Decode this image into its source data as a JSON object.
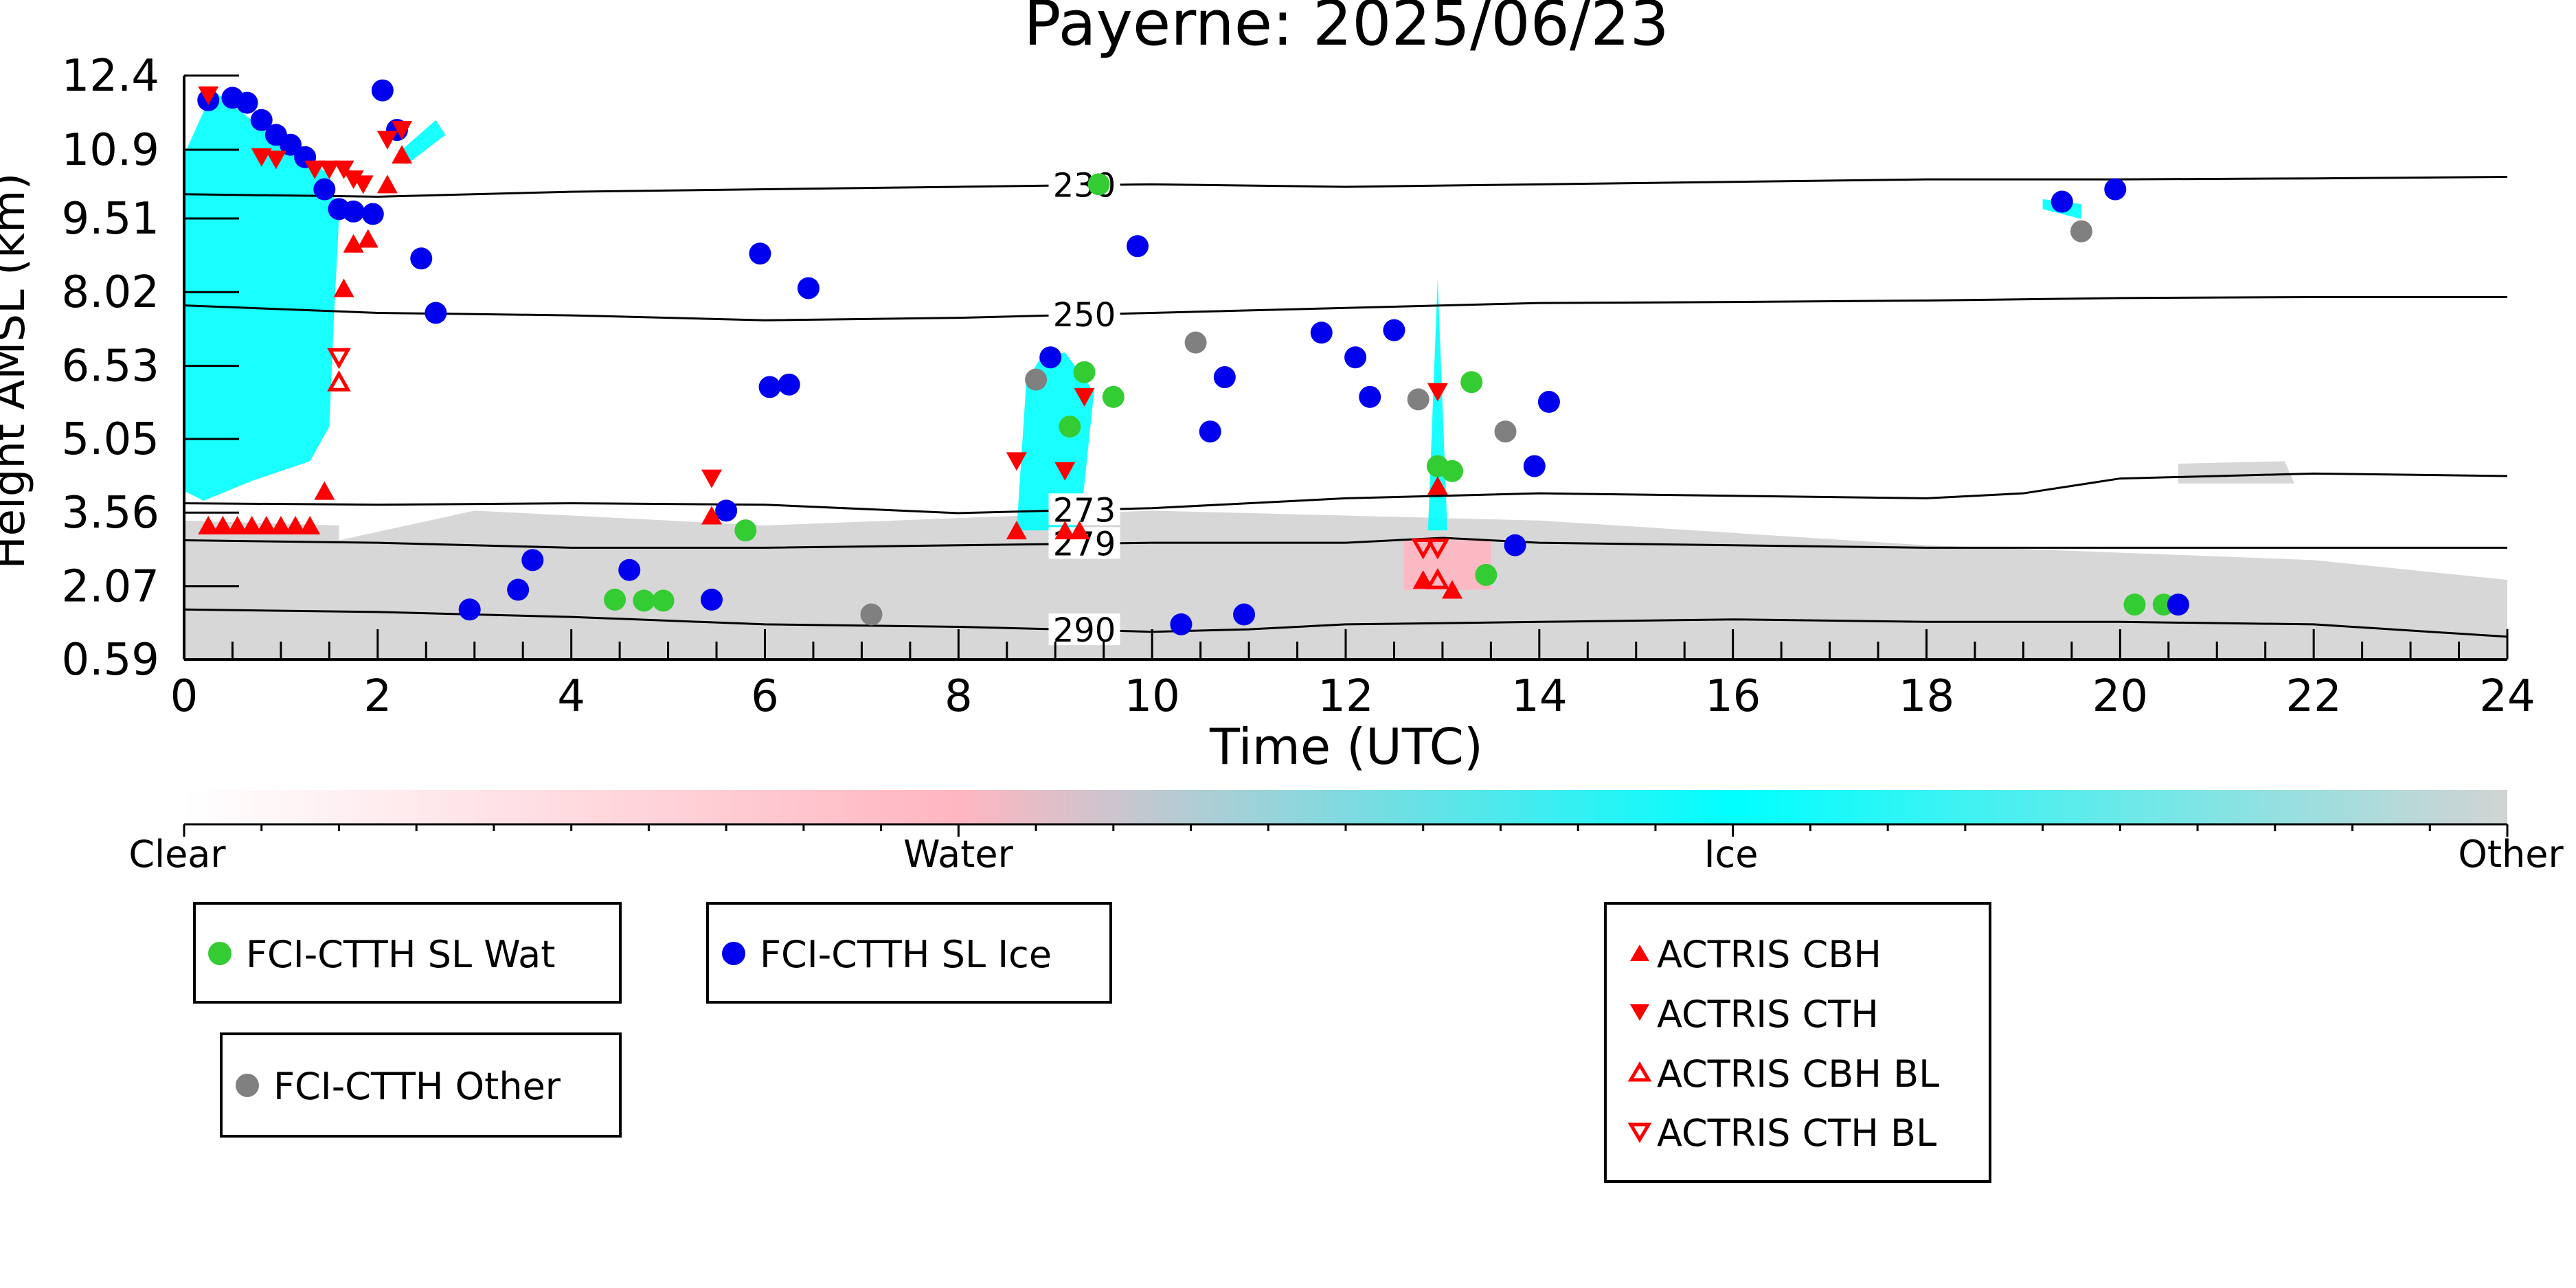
{
  "chart_data": {
    "type": "scatter",
    "title": "Payerne: 2025/06/23",
    "xlabel": "Time (UTC)",
    "ylabel": "Height AMSL (km)",
    "xlim": [
      0,
      24
    ],
    "ylim": [
      0.59,
      12.4
    ],
    "x_ticks": [
      "0",
      "2",
      "4",
      "6",
      "8",
      "10",
      "12",
      "14",
      "16",
      "18",
      "20",
      "22",
      "24"
    ],
    "y_ticks": [
      "0.59",
      "2.07",
      "3.56",
      "5.05",
      "6.53",
      "8.02",
      "9.51",
      "10.9",
      "12.4"
    ],
    "y_tick_values": [
      0.59,
      2.07,
      3.56,
      5.05,
      6.53,
      8.02,
      9.51,
      10.9,
      12.4
    ],
    "colorbar": {
      "labels": [
        "Clear",
        "Water",
        "Ice",
        "Other"
      ],
      "colors": [
        "#ffffff",
        "#ffb6c1",
        "#00ffff",
        "#d3d3d3"
      ]
    },
    "isotherms": [
      {
        "label": "230",
        "x": [
          0,
          2,
          4,
          6,
          8,
          10,
          12,
          14,
          16,
          18,
          20,
          22,
          24
        ],
        "y": [
          10.0,
          9.95,
          10.05,
          10.1,
          10.15,
          10.2,
          10.15,
          10.2,
          10.25,
          10.3,
          10.3,
          10.32,
          10.35
        ]
      },
      {
        "label": "250",
        "x": [
          0,
          2,
          4,
          6,
          8,
          10,
          12,
          14,
          16,
          18,
          20,
          22,
          24
        ],
        "y": [
          7.75,
          7.6,
          7.55,
          7.45,
          7.5,
          7.6,
          7.7,
          7.8,
          7.82,
          7.85,
          7.9,
          7.92,
          7.92
        ]
      },
      {
        "label": "273",
        "x": [
          0,
          2,
          4,
          6,
          8,
          10,
          12,
          14,
          16,
          18,
          19,
          20,
          22,
          24
        ],
        "y": [
          3.75,
          3.72,
          3.75,
          3.72,
          3.55,
          3.65,
          3.85,
          3.95,
          3.9,
          3.85,
          3.95,
          4.25,
          4.35,
          4.3
        ]
      },
      {
        "label": "279",
        "x": [
          0,
          2,
          4,
          6,
          8,
          10,
          12,
          13,
          14,
          16,
          18,
          20,
          22,
          24
        ],
        "y": [
          3.0,
          2.95,
          2.85,
          2.85,
          2.9,
          2.95,
          2.95,
          3.05,
          2.95,
          2.9,
          2.85,
          2.85,
          2.85,
          2.85
        ]
      },
      {
        "label": "290",
        "x": [
          0,
          2,
          4,
          6,
          8,
          10,
          11,
          12,
          14,
          16,
          18,
          20,
          22,
          24
        ],
        "y": [
          1.6,
          1.55,
          1.45,
          1.3,
          1.25,
          1.15,
          1.2,
          1.3,
          1.35,
          1.4,
          1.35,
          1.35,
          1.3,
          1.05
        ]
      }
    ],
    "regions": [
      {
        "class": "Ice",
        "color": "#00ffff",
        "points": [
          [
            0,
            4.0
          ],
          [
            0,
            10.8
          ],
          [
            0.3,
            12.1
          ],
          [
            0.9,
            11.2
          ],
          [
            1.5,
            10.4
          ],
          [
            1.6,
            9.5
          ],
          [
            1.55,
            7.6
          ],
          [
            1.5,
            5.3
          ],
          [
            1.3,
            4.6
          ],
          [
            0.7,
            4.2
          ],
          [
            0.2,
            3.8
          ]
        ]
      },
      {
        "class": "Other",
        "color": "#d3d3d3",
        "points": [
          [
            1.6,
            0.6
          ],
          [
            1.6,
            3.0
          ],
          [
            3.0,
            3.6
          ],
          [
            6.0,
            3.3
          ],
          [
            10.0,
            3.6
          ],
          [
            14.0,
            3.4
          ],
          [
            18.0,
            2.9
          ],
          [
            22.0,
            2.6
          ],
          [
            24.0,
            2.2
          ],
          [
            24.0,
            0.6
          ]
        ]
      },
      {
        "class": "Other",
        "color": "#d3d3d3",
        "points": [
          [
            0,
            0.6
          ],
          [
            0,
            3.4
          ],
          [
            1.6,
            3.3
          ],
          [
            1.6,
            0.6
          ]
        ]
      },
      {
        "class": "Water",
        "color": "#ffb6c1",
        "points": [
          [
            12.6,
            2.0
          ],
          [
            12.6,
            3.0
          ],
          [
            13.5,
            3.0
          ],
          [
            13.5,
            2.0
          ]
        ]
      },
      {
        "class": "Other",
        "color": "#d3d3d3",
        "points": [
          [
            20.6,
            4.15
          ],
          [
            20.6,
            4.55
          ],
          [
            21.7,
            4.6
          ],
          [
            21.8,
            4.15
          ]
        ]
      },
      {
        "class": "Ice",
        "color": "#00ffff",
        "points": [
          [
            19.2,
            9.7
          ],
          [
            19.2,
            9.9
          ],
          [
            19.6,
            9.8
          ],
          [
            19.6,
            9.5
          ]
        ]
      },
      {
        "class": "Ice",
        "color": "#00ffff",
        "points": [
          [
            8.6,
            3.2
          ],
          [
            8.7,
            6.2
          ],
          [
            8.85,
            6.7
          ],
          [
            9.1,
            6.8
          ],
          [
            9.4,
            6.0
          ],
          [
            9.25,
            3.2
          ]
        ]
      },
      {
        "class": "Ice",
        "color": "#00ffff",
        "points": [
          [
            12.85,
            3.2
          ],
          [
            12.95,
            8.3
          ],
          [
            13.05,
            3.2
          ]
        ]
      },
      {
        "class": "Ice",
        "color": "#00ffff",
        "points": [
          [
            2.25,
            10.9
          ],
          [
            2.6,
            11.5
          ],
          [
            2.7,
            11.2
          ],
          [
            2.3,
            10.6
          ]
        ]
      }
    ],
    "series": [
      {
        "name": "FCI-CTTH SL Wat",
        "marker": "circle",
        "color": "#33cc33",
        "x": [
          4.45,
          4.75,
          4.95,
          5.8,
          9.15,
          9.3,
          9.6,
          9.45,
          12.95,
          13.1,
          13.3,
          13.45,
          20.15,
          20.45
        ],
        "y": [
          1.8,
          1.78,
          1.78,
          3.2,
          5.3,
          6.4,
          5.9,
          10.2,
          4.5,
          4.4,
          6.2,
          2.3,
          1.7,
          1.7
        ]
      },
      {
        "name": "FCI-CTTH SL Ice",
        "marker": "circle",
        "color": "#0000ee",
        "x": [
          0.25,
          0.5,
          0.65,
          0.8,
          0.95,
          1.1,
          1.25,
          1.45,
          1.6,
          1.75,
          1.95,
          2.05,
          2.2,
          2.45,
          2.6,
          2.95,
          3.45,
          3.6,
          4.6,
          5.45,
          5.6,
          5.95,
          6.05,
          6.25,
          6.45,
          8.95,
          9.85,
          10.3,
          10.6,
          10.75,
          10.95,
          11.75,
          12.1,
          12.25,
          12.5,
          13.75,
          13.95,
          14.1,
          19.4,
          19.95,
          20.6
        ],
        "y": [
          11.9,
          11.95,
          11.85,
          11.5,
          11.2,
          11.0,
          10.75,
          10.1,
          9.7,
          9.65,
          9.6,
          12.1,
          11.3,
          8.7,
          7.6,
          1.6,
          2.0,
          2.6,
          2.4,
          1.8,
          3.6,
          8.8,
          6.1,
          6.15,
          8.1,
          6.7,
          8.95,
          1.3,
          5.2,
          6.3,
          1.5,
          7.2,
          6.7,
          5.9,
          7.25,
          2.9,
          4.5,
          5.8,
          9.85,
          10.1,
          1.7
        ]
      },
      {
        "name": "FCI-CTTH Other",
        "marker": "circle",
        "color": "#808080",
        "x": [
          7.1,
          8.8,
          10.45,
          12.75,
          13.65,
          19.6
        ],
        "y": [
          1.5,
          6.25,
          7.0,
          5.85,
          5.2,
          9.25
        ]
      },
      {
        "name": "ACTRIS CBH",
        "marker": "triangle-up",
        "color": "#ff0000",
        "x": [
          0.25,
          0.4,
          0.55,
          0.7,
          0.85,
          1.0,
          1.15,
          1.3,
          1.45,
          1.65,
          1.75,
          1.9,
          2.1,
          2.25,
          5.45,
          8.6,
          9.1,
          9.25,
          12.8,
          12.95,
          13.1
        ],
        "y": [
          3.3,
          3.3,
          3.3,
          3.3,
          3.3,
          3.3,
          3.3,
          3.3,
          4.0,
          8.1,
          9.0,
          9.1,
          10.2,
          10.8,
          3.5,
          3.2,
          3.2,
          3.2,
          2.2,
          4.1,
          2.0
        ]
      },
      {
        "name": "ACTRIS CTH",
        "marker": "triangle-down",
        "color": "#ff0000",
        "x": [
          0.25,
          0.8,
          0.95,
          1.35,
          1.5,
          1.65,
          1.75,
          1.85,
          2.1,
          2.25,
          5.45,
          8.6,
          9.1,
          9.3,
          12.95
        ],
        "y": [
          12.0,
          10.75,
          10.7,
          10.5,
          10.5,
          10.5,
          10.3,
          10.2,
          11.1,
          11.3,
          4.25,
          4.6,
          4.4,
          5.9,
          6.0
        ]
      },
      {
        "name": "ACTRIS CBH BL",
        "marker": "triangle-up-open",
        "color": "#ff0000",
        "x": [
          1.6,
          12.95
        ],
        "y": [
          6.2,
          2.2
        ]
      },
      {
        "name": "ACTRIS CTH BL",
        "marker": "triangle-down-open",
        "color": "#ff0000",
        "x": [
          1.6,
          12.8,
          12.95
        ],
        "y": [
          6.7,
          2.85,
          2.85
        ]
      }
    ]
  }
}
